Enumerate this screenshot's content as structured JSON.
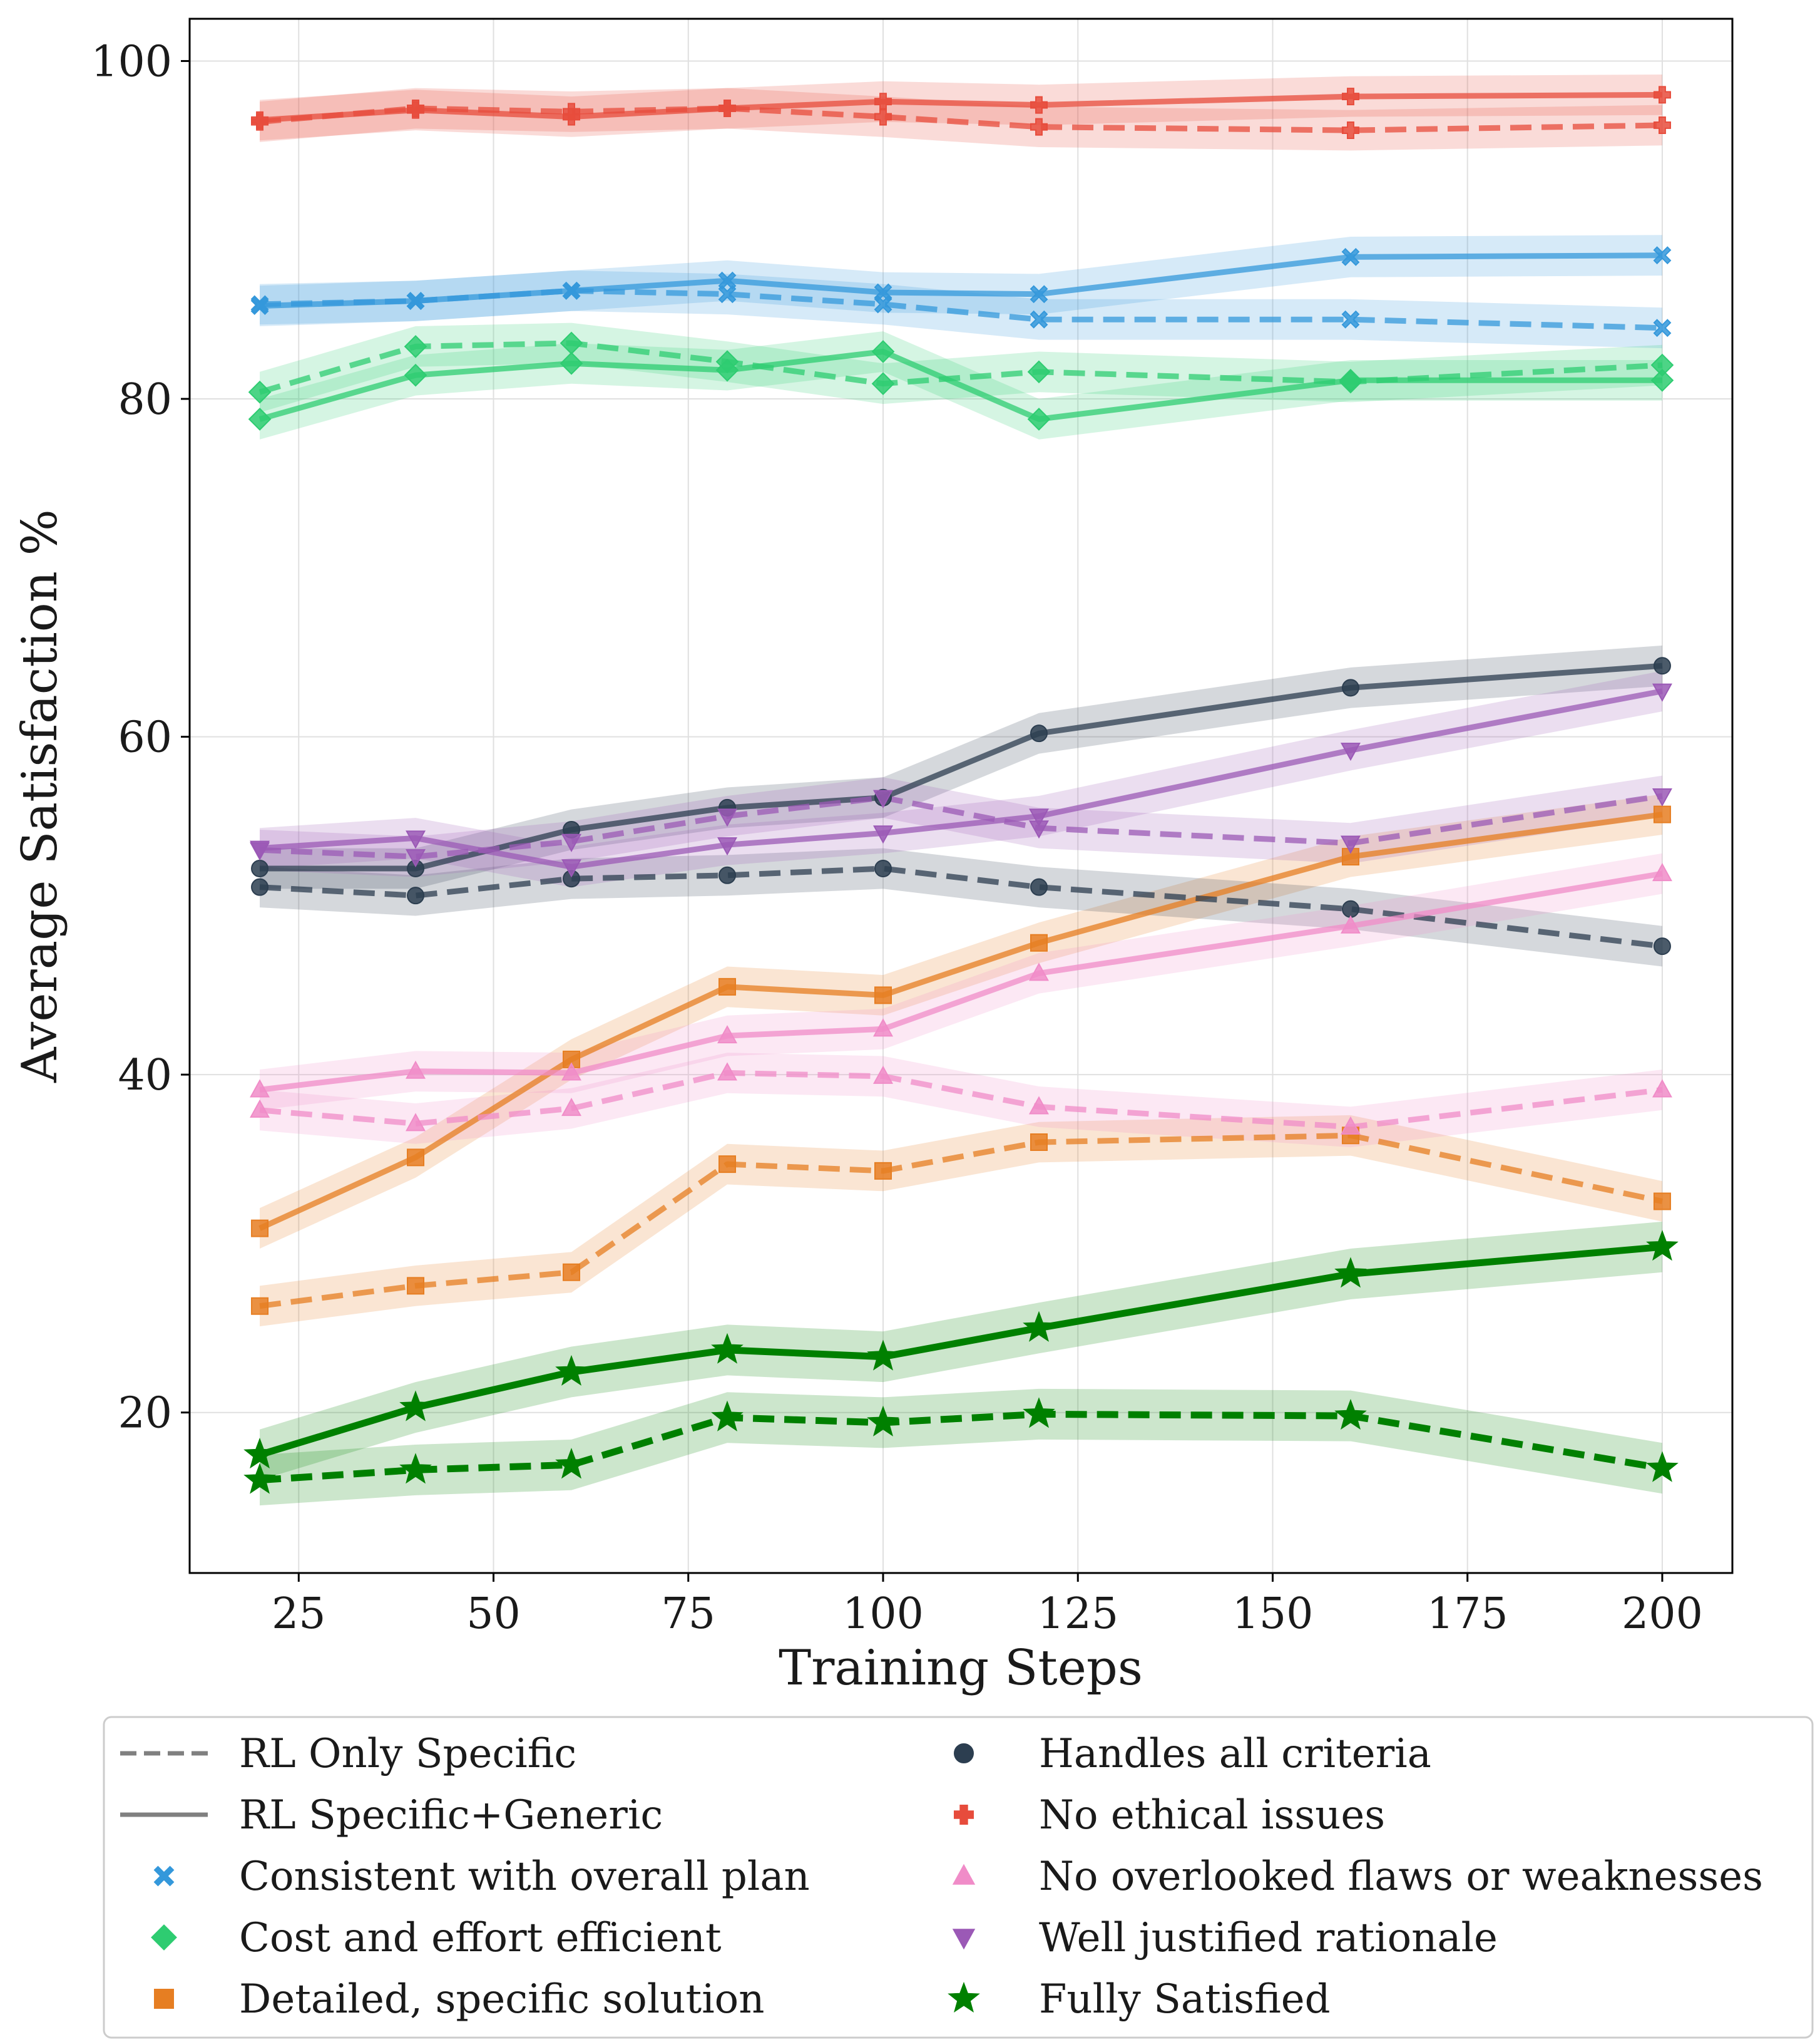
{
  "chart_data": {
    "type": "line",
    "title": "",
    "xlabel": "Training Steps",
    "ylabel": "Average Satisfaction %",
    "xlim": [
      11,
      209
    ],
    "ylim": [
      10.5,
      102.5
    ],
    "xticks": [
      25,
      50,
      75,
      100,
      125,
      150,
      175,
      200
    ],
    "yticks": [
      20,
      40,
      60,
      80,
      100
    ],
    "grid": true,
    "legend_position": "bottom",
    "legend_style": {
      "dashed_label": "RL Only Specific",
      "solid_label": "RL Specific+Generic"
    },
    "x": [
      20,
      40,
      60,
      80,
      100,
      120,
      160,
      200
    ],
    "series": [
      {
        "name": "Consistent with overall plan",
        "color": "#3498db",
        "marker": "x",
        "specific": [
          85.6,
          85.8,
          86.4,
          86.2,
          85.6,
          84.7,
          84.7,
          84.2
        ],
        "generic": [
          85.5,
          85.8,
          86.4,
          87.0,
          86.3,
          86.2,
          88.4,
          88.5
        ]
      },
      {
        "name": "Cost and effort efficient",
        "color": "#2ecc71",
        "marker": "diamond",
        "specific": [
          80.4,
          83.1,
          83.3,
          82.2,
          80.9,
          81.6,
          81.0,
          82.0
        ],
        "generic": [
          78.8,
          81.4,
          82.1,
          81.7,
          82.8,
          78.8,
          81.1,
          81.1
        ]
      },
      {
        "name": "Detailed, specific solution",
        "color": "#e67e22",
        "marker": "square",
        "specific": [
          26.3,
          27.5,
          28.3,
          34.7,
          34.3,
          36.0,
          36.4,
          32.5
        ],
        "generic": [
          30.9,
          35.1,
          40.9,
          45.2,
          44.7,
          47.8,
          52.9,
          55.4
        ]
      },
      {
        "name": "Handles all criteria",
        "color": "#2c3e50",
        "marker": "circle",
        "specific": [
          51.1,
          50.6,
          51.6,
          51.8,
          52.2,
          51.1,
          49.8,
          47.6
        ],
        "generic": [
          52.2,
          52.2,
          54.5,
          55.8,
          56.4,
          60.2,
          62.9,
          64.2
        ]
      },
      {
        "name": "No ethical issues",
        "color": "#e74c3c",
        "marker": "plus",
        "specific": [
          96.4,
          97.2,
          97.0,
          97.2,
          96.7,
          96.1,
          95.9,
          96.2
        ],
        "generic": [
          96.5,
          97.1,
          96.7,
          97.2,
          97.6,
          97.4,
          97.9,
          98.0
        ]
      },
      {
        "name": "No overlooked flaws or weaknesses",
        "color": "#f08cc8",
        "marker": "triangle-up",
        "specific": [
          37.9,
          37.1,
          38.0,
          40.1,
          39.9,
          38.1,
          36.9,
          39.1
        ],
        "generic": [
          39.1,
          40.2,
          40.1,
          42.3,
          42.7,
          46.0,
          48.8,
          51.9
        ]
      },
      {
        "name": "Well justified rationale",
        "color": "#9b59b6",
        "marker": "triangle-down",
        "specific": [
          53.3,
          52.9,
          53.8,
          55.3,
          56.4,
          54.6,
          53.7,
          56.5
        ],
        "generic": [
          53.4,
          54.0,
          52.3,
          53.6,
          54.3,
          55.3,
          59.2,
          62.7
        ]
      },
      {
        "name": "Fully Satisfied",
        "color": "#008000",
        "marker": "star",
        "specific": [
          16.0,
          16.6,
          16.9,
          19.7,
          19.4,
          19.9,
          19.8,
          16.7
        ],
        "generic": [
          17.5,
          20.3,
          22.4,
          23.7,
          23.3,
          25.0,
          28.2,
          29.8
        ]
      }
    ]
  }
}
